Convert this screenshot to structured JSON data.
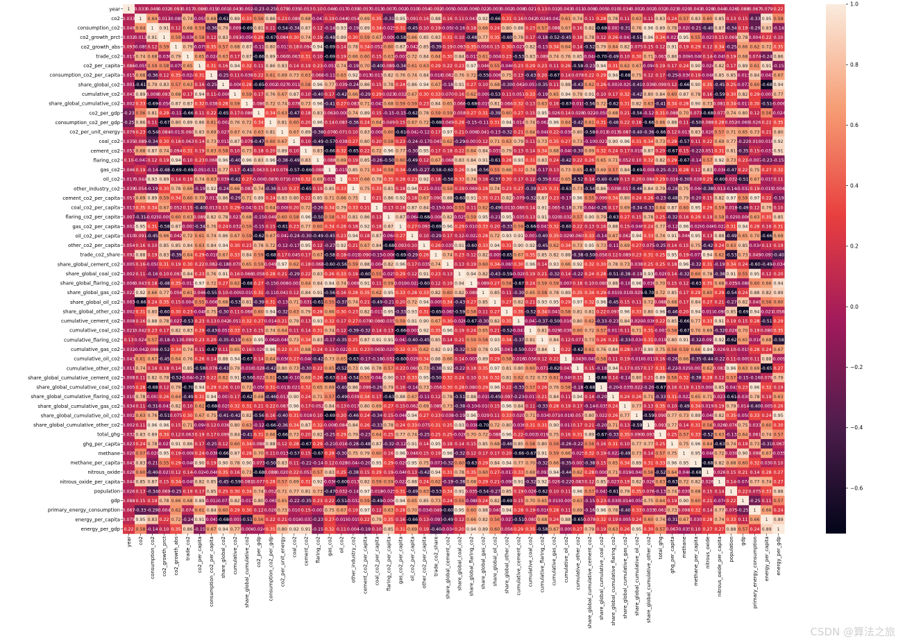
{
  "chart_data": {
    "type": "heatmap",
    "title": "",
    "annotated": true,
    "diagonal_value": 1,
    "labels": [
      "year",
      "co2",
      "consumption_co2",
      "co2_growth_prct",
      "co2_growth_abs",
      "trade_co2",
      "co2_per_capita",
      "consumption_co2_per_capita",
      "share_global_co2",
      "cumulative_co2",
      "share_global_cumulative_co2",
      "co2_per_gdp",
      "consumption_co2_per_gdp",
      "co2_per_unit_energy",
      "coal_co2",
      "cement_co2",
      "flaring_co2",
      "gas_co2",
      "oil_co2",
      "other_industry_co2",
      "cement_co2_per_capita",
      "coal_co2_per_capita",
      "flaring_co2_per_capita",
      "gas_co2_per_capita",
      "oil_co2_per_capita",
      "other_co2_per_capita",
      "trade_co2_share",
      "share_global_cement_co2",
      "share_global_coal_co2",
      "share_global_flaring_co2",
      "share_global_gas_co2",
      "share_global_oil_co2",
      "share_global_other_co2",
      "cumulative_cement_co2",
      "cumulative_coal_co2",
      "cumulative_flaring_co2",
      "cumulative_gas_co2",
      "cumulative_oil_co2",
      "cumulative_other_co2",
      "share_global_cumulative_cement_co2",
      "share_global_cumulative_coal_co2",
      "share_global_cumulative_flaring_co2",
      "share_global_cumulative_gas_co2",
      "share_global_cumulative_oil_co2",
      "share_global_cumulative_other_co2",
      "total_ghg",
      "ghg_per_capita",
      "methane",
      "methane_per_capita",
      "nitrous_oxide",
      "nitrous_oxide_per_capita",
      "population",
      "gdp",
      "primary_energy_consumption",
      "energy_per_capita",
      "energy_per_gdp"
    ],
    "first_row_values": [
      1,
      0.033,
      0.049,
      0.032,
      0.093,
      0.017,
      0.086,
      0.015,
      0.001,
      0.043,
      0.002,
      -0.23,
      -0.25,
      0.079,
      0.035,
      0.053,
      0.1,
      0.046,
      0.017,
      0.039,
      0.057,
      0.013,
      0.007,
      0.002,
      0.0098,
      0.054,
      0.092,
      0.005,
      0.002,
      0.006,
      0.022,
      0.003,
      0.002,
      0.008,
      0.021,
      0.13,
      0.032,
      0.043,
      0.011,
      0.008,
      0.005,
      0.01,
      0.034,
      0.002,
      0.002,
      0.032,
      0.023,
      0.02,
      0.043,
      0.028,
      0.044,
      0.026,
      0.088,
      0.067,
      0.079,
      0.22
    ],
    "colorbar": {
      "min": -0.75,
      "max": 1.0,
      "ticks": [
        1.0,
        0.8,
        0.6,
        0.4,
        0.2,
        0.0,
        -0.2,
        -0.4,
        -0.6
      ],
      "tick_labels": [
        "1.0",
        "0.8",
        "0.6",
        "0.4",
        "0.2",
        "0.0",
        "−0.2",
        "−0.4",
        "−0.6"
      ]
    },
    "colormap": "rocket",
    "colors": [
      "#03051a",
      "#4c1d4b",
      "#a11a5b",
      "#e83f3f",
      "#f69c73",
      "#faebdd"
    ]
  },
  "watermark": "CSDN @算法之旅"
}
